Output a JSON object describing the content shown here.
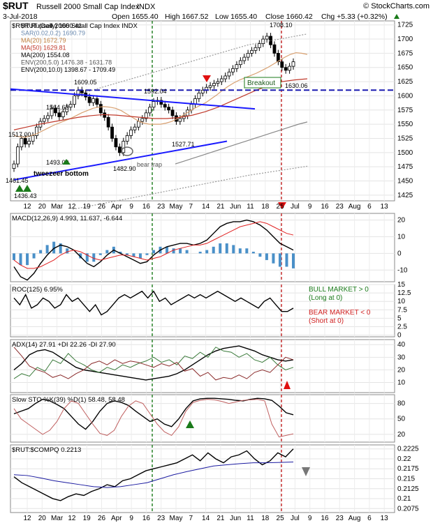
{
  "header": {
    "symbol": "$RUT",
    "name": "Russell 2000 Small Cap Index",
    "exchange": "INDX",
    "source": "© StockCharts.com",
    "date": "3-Jul-2018",
    "open": "Open 1655.40",
    "high": "High 1667.52",
    "low": "Low 1655.40",
    "close": "Close 1660.42",
    "chg": "Chg +5.33 (+0.32%)",
    "chg_arrow": "up"
  },
  "colors": {
    "up": "#000000",
    "down": "#000000",
    "ma20": "#d8a070",
    "ma50": "#c0392b",
    "ma200": "#888888",
    "trend": "#1a1aff",
    "green": "#1a7a1a",
    "red": "#e01010",
    "macd_line": "#000000",
    "signal_line": "#e02020",
    "hist": "#4a90c8",
    "ema": "#1a1aa0"
  },
  "legend": [
    {
      "text": "$RUT (Daily) 1660.42",
      "color": "#000000"
    },
    {
      "text": "SAR(0.02,0.2) 1690.79",
      "color": "#6a8ab0"
    },
    {
      "text": "MA(20) 1672.79",
      "color": "#c08040"
    },
    {
      "text": "MA(50) 1629.81",
      "color": "#c0392b"
    },
    {
      "text": "MA(200) 1554.08",
      "color": "#000000"
    },
    {
      "text": "ENV(200,5.0) 1476.38 - 1631.78",
      "color": "#555555"
    },
    {
      "text": "ENV(200,10.0) 1398.67 - 1709.49",
      "color": "#000000"
    }
  ],
  "annotations": {
    "breakout": "Breakout",
    "tweezer": "tweezeer bottom",
    "bear_trap": "bear trap",
    "bull_market": "BULL MARKET > 0",
    "bull_sub": "(Long at 0)",
    "bear_market": "BEAR MARKET < 0",
    "bear_sub": "(Short at 0)"
  },
  "price_labels": [
    "1461.45",
    "1436.43",
    "1517.00",
    "1564.63",
    "1609.05",
    "1592.04",
    "1527.71",
    "1482.90",
    "1493.00",
    "1708.10",
    "1630.06"
  ],
  "x_labels": [
    "12",
    "20",
    "Mar",
    "12",
    "19",
    "26",
    "Apr",
    "9",
    "16",
    "23",
    "May",
    "7",
    "14",
    "21",
    "Jun",
    "11",
    "18",
    "25",
    "Jul",
    "9",
    "16",
    "23",
    "Aug",
    "6",
    "13"
  ],
  "chart_data": [
    {
      "type": "candlestick",
      "title": "$RUT Russell 2000 Small Cap Index INDX",
      "ylim": [
        1415,
        1732
      ],
      "yticks": [
        1425,
        1450,
        1475,
        1500,
        1525,
        1550,
        1575,
        1600,
        1625,
        1650,
        1675,
        1700,
        1725
      ],
      "horizontal_line": 1610,
      "close": [
        1480,
        1510,
        1525,
        1515,
        1520,
        1530,
        1545,
        1555,
        1560,
        1565,
        1578,
        1570,
        1563,
        1572,
        1580,
        1585,
        1600,
        1610,
        1605,
        1598,
        1588,
        1595,
        1585,
        1570,
        1562,
        1545,
        1525,
        1510,
        1500,
        1520,
        1530,
        1540,
        1545,
        1555,
        1560,
        1570,
        1580,
        1590,
        1592,
        1585,
        1580,
        1575,
        1565,
        1555,
        1560,
        1565,
        1575,
        1585,
        1595,
        1605,
        1610,
        1615,
        1618,
        1622,
        1625,
        1630,
        1635,
        1642,
        1648,
        1655,
        1662,
        1668,
        1675,
        1680,
        1685,
        1692,
        1700,
        1705,
        1690,
        1675,
        1660,
        1650,
        1645,
        1652,
        1660
      ],
      "series": [
        {
          "name": "MA(20)",
          "values": [
            1530,
            1528,
            1527,
            1530,
            1533,
            1538,
            1543,
            1548,
            1552,
            1556,
            1560,
            1565,
            1570,
            1574,
            1578,
            1580,
            1581,
            1580,
            1578,
            1574,
            1568,
            1562,
            1556,
            1552,
            1550,
            1550,
            1550,
            1552,
            1555,
            1560,
            1566,
            1572,
            1578,
            1583,
            1588,
            1595,
            1602,
            1610,
            1617,
            1623,
            1628,
            1632,
            1636,
            1640,
            1645,
            1650,
            1656,
            1662,
            1668,
            1673,
            1676,
            1675,
            1673
          ]
        },
        {
          "name": "MA(50)",
          "values": [
            1540,
            1545,
            1550,
            1554,
            1558,
            1562,
            1565,
            1567,
            1566,
            1564,
            1562,
            1560,
            1560,
            1562,
            1566,
            1572,
            1580,
            1590,
            1600,
            1610,
            1618,
            1625,
            1628,
            1630
          ]
        },
        {
          "name": "MA(200)",
          "values": [
            1480,
            1485,
            1490,
            1495,
            1500,
            1505,
            1510,
            1515,
            1520,
            1525,
            1530,
            1535,
            1540,
            1545,
            1550,
            1554
          ]
        },
        {
          "name": "ENV upper",
          "values": [
            1600,
            1630,
            1660,
            1690,
            1709
          ]
        },
        {
          "name": "ENV lower",
          "values": [
            1400,
            1420,
            1440,
            1460,
            1476
          ]
        }
      ]
    },
    {
      "type": "line",
      "title": "MACD(12,26,9) 4.993, 11.637, -6.644",
      "ylim": [
        -17,
        24
      ],
      "yticks": [
        -10,
        0,
        10,
        20
      ],
      "series": [
        {
          "name": "MACD",
          "values": [
            -8,
            -14,
            -16,
            -12,
            -6,
            -1,
            3,
            5,
            4,
            2,
            -2,
            -6,
            -8,
            -5,
            -1,
            2,
            0,
            -2,
            -4,
            -6,
            -5,
            -1,
            2,
            4,
            5,
            6,
            6,
            5,
            6,
            8,
            12,
            16,
            18,
            19,
            19,
            20,
            19,
            17,
            14,
            10,
            6,
            4,
            2
          ]
        },
        {
          "name": "Signal",
          "values": [
            -4,
            -7,
            -9,
            -9,
            -8,
            -6,
            -4,
            -1,
            1,
            2,
            1,
            -1,
            -3,
            -4,
            -3,
            -2,
            -1,
            -1,
            -2,
            -3,
            -4,
            -3,
            -2,
            0,
            2,
            3,
            4,
            5,
            5,
            6,
            8,
            10,
            12,
            14,
            16,
            17,
            18,
            19,
            18,
            16,
            14,
            12,
            11
          ]
        }
      ]
    },
    {
      "type": "line",
      "title": "ROC(125) 6.95%",
      "ylim": [
        -0.5,
        15
      ],
      "yticks": [
        0.0,
        2.5,
        5.0,
        7.5,
        10.0,
        12.5,
        15.0
      ],
      "series": [
        {
          "name": "ROC(125)",
          "values": [
            11,
            9,
            12,
            8,
            9,
            11,
            10,
            8,
            9,
            12,
            10,
            11,
            9,
            7,
            9,
            6,
            7,
            9,
            11,
            12,
            11,
            12,
            13,
            11,
            13,
            10,
            11,
            9,
            10,
            11,
            12,
            11,
            12,
            11,
            12,
            13,
            12,
            11,
            10,
            11,
            10,
            9,
            8,
            10,
            11,
            9,
            7,
            7,
            8
          ]
        }
      ]
    },
    {
      "type": "line",
      "title": "ADX(14) 27.91 +DI 22.26 -DI 27.90",
      "ylim": [
        2,
        44
      ],
      "yticks": [
        10,
        20,
        30,
        40
      ],
      "series": [
        {
          "name": "ADX(14)",
          "values": [
            20,
            25,
            32,
            35,
            36,
            34,
            30,
            26,
            22,
            20,
            19,
            18,
            17,
            16,
            15,
            14,
            13,
            12,
            13,
            14,
            15,
            17,
            20,
            24,
            28,
            32,
            35,
            37,
            38,
            39,
            37,
            35,
            32,
            30,
            28,
            27,
            28
          ]
        },
        {
          "name": "+DI",
          "values": [
            13,
            17,
            15,
            22,
            19,
            28,
            25,
            33,
            27,
            24,
            20,
            18,
            22,
            20,
            24,
            22,
            25,
            27,
            30,
            26,
            28,
            24,
            31,
            29,
            34,
            30,
            38,
            35,
            34,
            30,
            33,
            28,
            26,
            30,
            24,
            20,
            22
          ]
        },
        {
          "name": "-DI",
          "values": [
            38,
            31,
            23,
            20,
            18,
            14,
            16,
            13,
            17,
            20,
            25,
            27,
            24,
            28,
            25,
            27,
            26,
            24,
            22,
            25,
            23,
            26,
            19,
            21,
            15,
            18,
            12,
            14,
            13,
            16,
            13,
            18,
            20,
            18,
            24,
            30,
            28
          ]
        }
      ]
    },
    {
      "type": "line",
      "title": "Slow STO %K(39) %D(1) 58.48, 58.48",
      "ylim": [
        5,
        97
      ],
      "yticks": [
        20,
        50,
        80
      ],
      "series": [
        {
          "name": "Slow STO %K(39)",
          "values": [
            60,
            65,
            70,
            80,
            88,
            85,
            78,
            70,
            55,
            40,
            30,
            45,
            65,
            80,
            85,
            82,
            76,
            65,
            55,
            45,
            50,
            40,
            35,
            50,
            70,
            85,
            89,
            90,
            90,
            89,
            88,
            86,
            85,
            88,
            90,
            89,
            86,
            75,
            62,
            58
          ]
        },
        {
          "name": "Slow STO %K(14)",
          "values": [
            70,
            50,
            40,
            30,
            20,
            28,
            45,
            70,
            85,
            80,
            60,
            40,
            22,
            18,
            28,
            55,
            75,
            85,
            80,
            60,
            40,
            25,
            18,
            35,
            65,
            82,
            86,
            88,
            87,
            84,
            80,
            83,
            86,
            87,
            88,
            85,
            40,
            15,
            18,
            21
          ]
        }
      ]
    },
    {
      "type": "line",
      "title": "$RUT:$COMPQ 0.2213",
      "ylim": [
        0.2065,
        0.2235
      ],
      "yticks": [
        0.2075,
        0.21,
        0.2125,
        0.215,
        0.2175,
        0.22,
        0.2225
      ],
      "series": [
        {
          "name": "$RUT:$COMPQ",
          "values": [
            0.2155,
            0.214,
            0.213,
            0.212,
            0.211,
            0.21,
            0.2095,
            0.2105,
            0.2112,
            0.2108,
            0.2118,
            0.2125,
            0.2135,
            0.213,
            0.2145,
            0.215,
            0.216,
            0.217,
            0.2175,
            0.218,
            0.2185,
            0.219,
            0.22,
            0.221,
            0.2195,
            0.2215,
            0.22,
            0.219,
            0.2205,
            0.221,
            0.222,
            0.22,
            0.2185,
            0.2195,
            0.2215,
            0.2205,
            0.2225
          ]
        },
        {
          "name": "EMA(20) 0.2192",
          "values": [
            0.216,
            0.2158,
            0.2152,
            0.2145,
            0.214,
            0.2135,
            0.213,
            0.2128,
            0.213,
            0.2135,
            0.214,
            0.215,
            0.216,
            0.2168,
            0.2175,
            0.2182,
            0.2185,
            0.2188,
            0.219,
            0.219,
            0.2191,
            0.2192
          ]
        }
      ]
    }
  ]
}
